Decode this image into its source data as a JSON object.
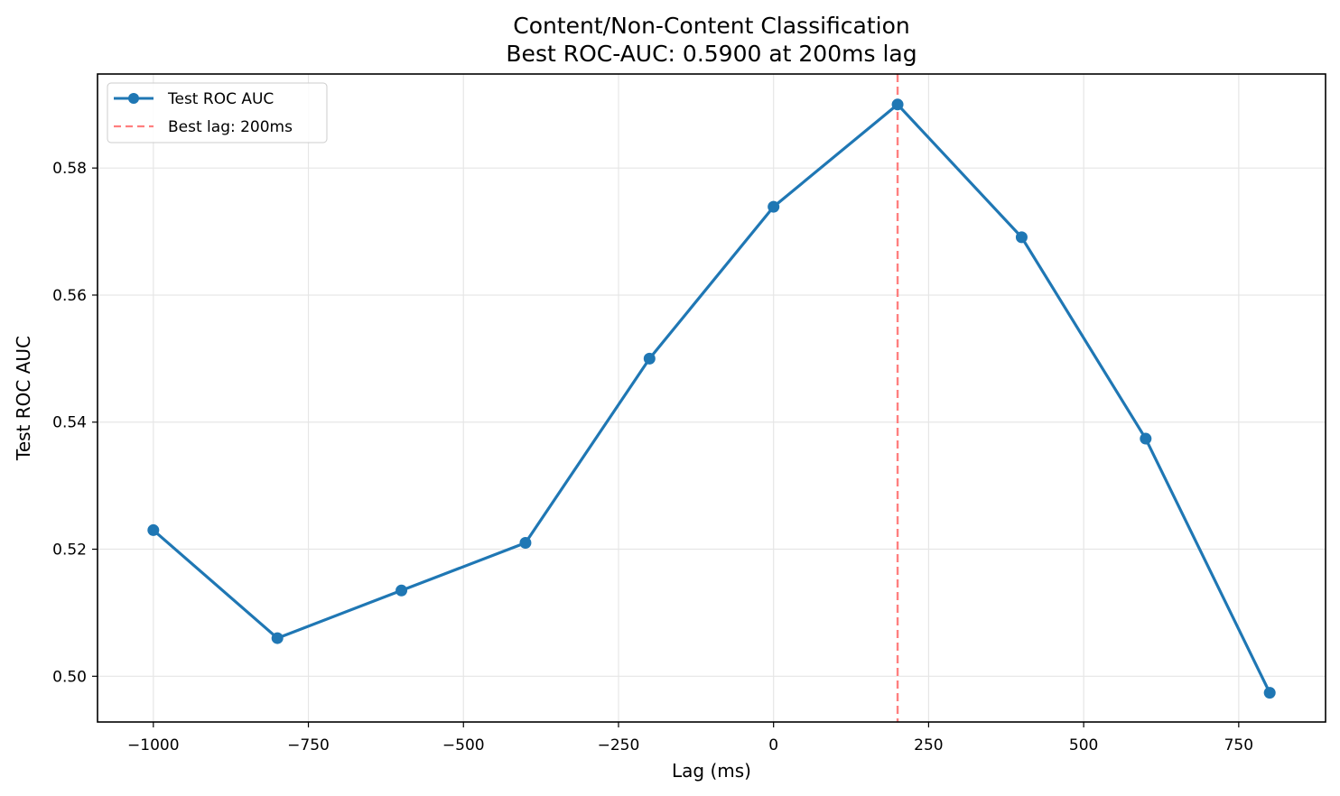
{
  "chart_data": {
    "type": "line",
    "title": "Content/Non-Content Classification",
    "subtitle": "Best ROC-AUC: 0.5900 at 200ms lag",
    "xlabel": "Lag (ms)",
    "ylabel": "Test ROC AUC",
    "x": [
      -1000,
      -800,
      -600,
      -400,
      -200,
      0,
      200,
      400,
      600,
      800
    ],
    "series": [
      {
        "name": "Test ROC AUC",
        "color": "#1f77b4",
        "marker": "circle",
        "values": [
          0.523,
          0.506,
          0.5135,
          0.521,
          0.55,
          0.5739,
          0.59,
          0.5691,
          0.5374,
          0.4974
        ]
      }
    ],
    "annotations": [
      {
        "type": "vline",
        "x": 200,
        "label": "Best lag: 200ms",
        "color": "#ff7f7f",
        "style": "dashed"
      }
    ],
    "xticks": [
      -1000,
      -750,
      -500,
      -250,
      0,
      250,
      500,
      750
    ],
    "xtick_labels": [
      "−1000",
      "−750",
      "−500",
      "−250",
      "0",
      "250",
      "500",
      "750"
    ],
    "yticks": [
      0.5,
      0.52,
      0.54,
      0.56,
      0.58
    ],
    "ytick_labels": [
      "0.50",
      "0.52",
      "0.54",
      "0.56",
      "0.58"
    ],
    "xlim": [
      -1090,
      890
    ],
    "ylim": [
      0.4928,
      0.5948
    ],
    "grid": true,
    "legend_position": "upper left",
    "legend": [
      "Test ROC AUC",
      "Best lag: 200ms"
    ]
  }
}
